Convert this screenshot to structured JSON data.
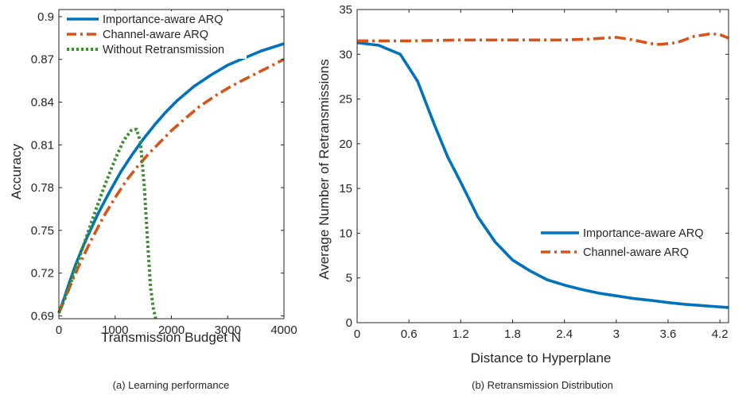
{
  "chart_data": [
    {
      "type": "line",
      "caption": "(a) Learning performance",
      "xlabel": "Transmission Budget N",
      "ylabel": "Accuracy",
      "xlim": [
        0,
        4000
      ],
      "ylim": [
        0.688,
        0.905
      ],
      "xticks": [
        0,
        1000,
        2000,
        3000,
        4000
      ],
      "xtick_labels": [
        "0",
        "1000",
        "2000",
        "3000",
        "4000"
      ],
      "yticks": [
        0.69,
        0.72,
        0.75,
        0.78,
        0.81,
        0.84,
        0.87,
        0.9
      ],
      "ytick_labels": [
        "0.69",
        "0.72",
        "0.75",
        "0.78",
        "0.81",
        "0.84",
        "0.87",
        "0.9"
      ],
      "legend_position": "top-left",
      "series": [
        {
          "name": "Importance-aware ARQ",
          "color": "#0072BD",
          "style": "solid",
          "x": [
            0,
            100,
            200,
            300,
            400,
            500,
            700,
            900,
            1100,
            1300,
            1500,
            1700,
            1900,
            2100,
            2400,
            2700,
            3000,
            3300,
            3600,
            4000
          ],
          "y": [
            0.692,
            0.703,
            0.715,
            0.726,
            0.736,
            0.745,
            0.762,
            0.777,
            0.791,
            0.803,
            0.814,
            0.824,
            0.833,
            0.841,
            0.851,
            0.859,
            0.866,
            0.871,
            0.876,
            0.881
          ]
        },
        {
          "name": "Channel-aware ARQ",
          "color": "#D95319",
          "style": "dashdot",
          "x": [
            0,
            100,
            200,
            300,
            400,
            600,
            800,
            1000,
            1200,
            1400,
            1600,
            1800,
            2000,
            2200,
            2500,
            2800,
            3100,
            3400,
            3700,
            4000
          ],
          "y": [
            0.692,
            0.701,
            0.711,
            0.72,
            0.729,
            0.745,
            0.76,
            0.773,
            0.785,
            0.795,
            0.804,
            0.812,
            0.82,
            0.827,
            0.837,
            0.845,
            0.852,
            0.858,
            0.864,
            0.87
          ]
        },
        {
          "name": "Without Retransmission",
          "color": "#3A8E2E",
          "style": "dotted",
          "x": [
            0,
            200,
            400,
            600,
            800,
            1000,
            1150,
            1280,
            1380,
            1450,
            1520,
            1580,
            1630,
            1680,
            1720
          ],
          "y": [
            0.692,
            0.712,
            0.735,
            0.758,
            0.78,
            0.8,
            0.813,
            0.82,
            0.821,
            0.812,
            0.78,
            0.74,
            0.71,
            0.695,
            0.688
          ]
        }
      ]
    },
    {
      "type": "line",
      "caption": "(b) Retransmission Distribution",
      "xlabel": "Distance to Hyperplane",
      "ylabel": "Average Number of Retransmissions",
      "xlim": [
        0,
        4.3
      ],
      "ylim": [
        0,
        35
      ],
      "xticks": [
        0,
        0.6,
        1.2,
        1.8,
        2.4,
        3,
        3.6,
        4.2
      ],
      "xtick_labels": [
        "0",
        "0.6",
        "1.2",
        "1.8",
        "2.4",
        "3",
        "3.6",
        "4.2"
      ],
      "yticks": [
        0,
        5,
        10,
        15,
        20,
        25,
        30,
        35
      ],
      "ytick_labels": [
        "0",
        "5",
        "10",
        "15",
        "20",
        "25",
        "30",
        "35"
      ],
      "legend_position": "lower-right",
      "series": [
        {
          "name": "Importance-aware ARQ",
          "color": "#0072BD",
          "style": "solid",
          "x": [
            0,
            0.25,
            0.5,
            0.7,
            0.9,
            1.05,
            1.2,
            1.4,
            1.6,
            1.8,
            2.0,
            2.2,
            2.4,
            2.6,
            2.8,
            3.0,
            3.2,
            3.4,
            3.6,
            3.8,
            4.0,
            4.3
          ],
          "y": [
            31.3,
            31.0,
            30.0,
            27.0,
            22.0,
            18.5,
            15.7,
            11.8,
            9.0,
            7.0,
            5.8,
            4.8,
            4.2,
            3.7,
            3.3,
            3.0,
            2.7,
            2.5,
            2.25,
            2.05,
            1.9,
            1.7
          ]
        },
        {
          "name": "Channel-aware ARQ",
          "color": "#D95319",
          "style": "dashdot",
          "x": [
            0,
            0.6,
            1.2,
            1.8,
            2.4,
            2.7,
            3.0,
            3.2,
            3.4,
            3.5,
            3.7,
            3.9,
            4.1,
            4.2,
            4.3
          ],
          "y": [
            31.5,
            31.5,
            31.6,
            31.6,
            31.6,
            31.7,
            31.9,
            31.6,
            31.2,
            31.1,
            31.3,
            32.0,
            32.3,
            32.2,
            31.8
          ]
        }
      ]
    }
  ]
}
